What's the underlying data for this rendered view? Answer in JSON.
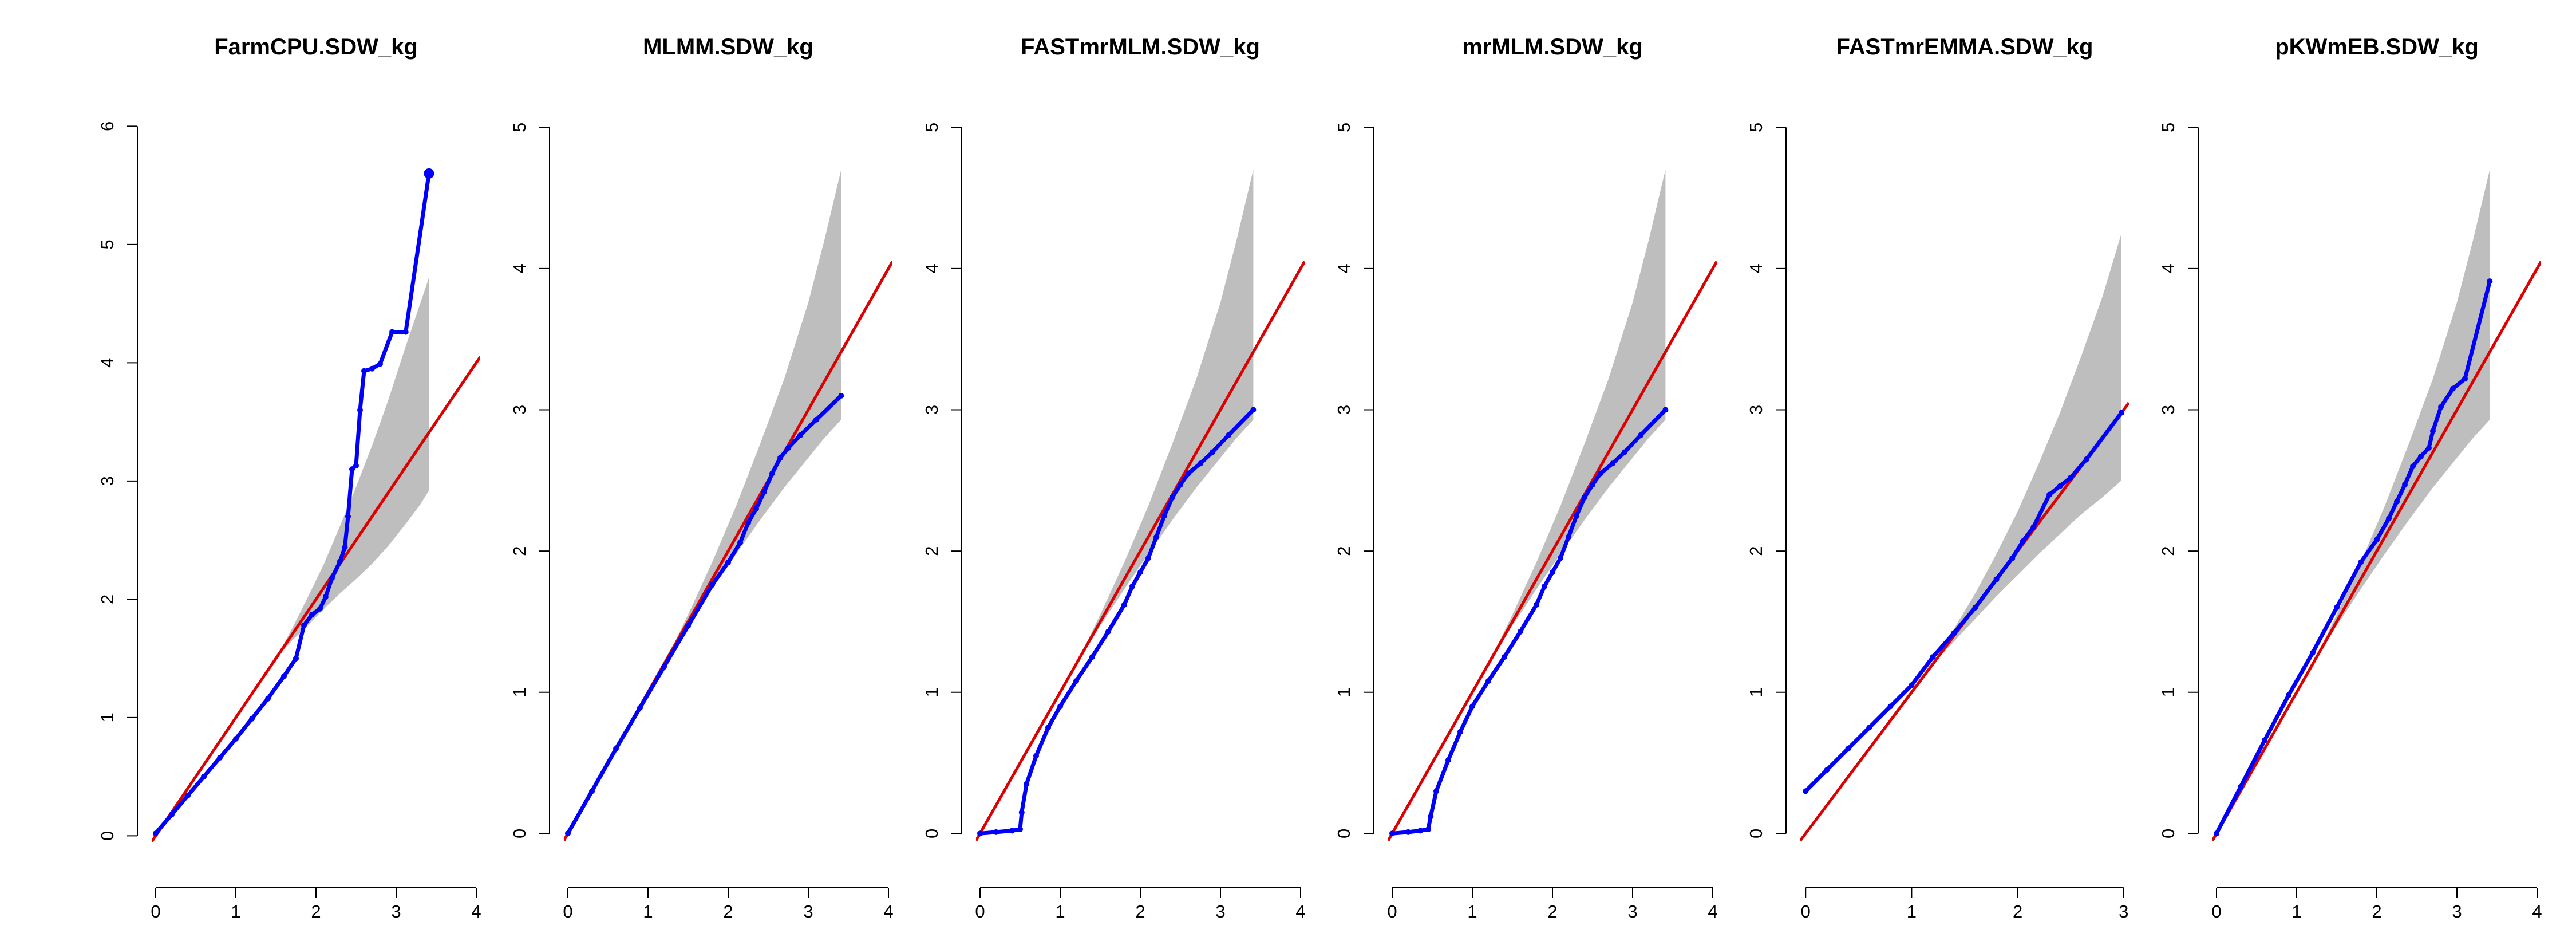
{
  "colors": {
    "points": "#0000ff",
    "line": "#dd0000",
    "band": "#bebebe",
    "axis": "#000000"
  },
  "chart_data": [
    {
      "type": "scatter",
      "title": "FarmCPU.SDW_kg",
      "xlabel": "",
      "ylabel": "",
      "xlim": [
        -0.05,
        4.05
      ],
      "ylim": [
        -0.1,
        6.05
      ],
      "xticks": [
        0,
        1,
        2,
        3,
        4
      ],
      "yticks": [
        0,
        1,
        2,
        3,
        4,
        5,
        6
      ],
      "reference_line": {
        "slope": 1,
        "intercept": 0
      },
      "band": {
        "x": [
          1.5,
          1.7,
          1.9,
          2.1,
          2.3,
          2.5,
          2.7,
          2.9,
          3.1,
          3.3,
          3.41
        ],
        "lower": [
          1.5,
          1.65,
          1.78,
          1.92,
          2.05,
          2.17,
          2.3,
          2.45,
          2.62,
          2.8,
          2.92
        ],
        "upper": [
          1.5,
          1.75,
          2.02,
          2.3,
          2.62,
          2.95,
          3.3,
          3.68,
          4.1,
          4.5,
          4.72
        ]
      },
      "points": [
        [
          0,
          0.02
        ],
        [
          0.2,
          0.18
        ],
        [
          0.4,
          0.34
        ],
        [
          0.6,
          0.5
        ],
        [
          0.8,
          0.66
        ],
        [
          1.0,
          0.82
        ],
        [
          1.2,
          0.99
        ],
        [
          1.4,
          1.16
        ],
        [
          1.6,
          1.35
        ],
        [
          1.75,
          1.5
        ],
        [
          1.85,
          1.78
        ],
        [
          1.95,
          1.87
        ],
        [
          2.05,
          1.92
        ],
        [
          2.12,
          2.02
        ],
        [
          2.2,
          2.18
        ],
        [
          2.3,
          2.32
        ],
        [
          2.36,
          2.44
        ],
        [
          2.4,
          2.7
        ],
        [
          2.45,
          3.1
        ],
        [
          2.5,
          3.13
        ],
        [
          2.55,
          3.6
        ],
        [
          2.6,
          3.93
        ],
        [
          2.7,
          3.95
        ],
        [
          2.8,
          3.99
        ],
        [
          2.95,
          4.26
        ],
        [
          3.12,
          4.26
        ],
        [
          3.41,
          5.6
        ]
      ]
    },
    {
      "type": "scatter",
      "title": "MLMM.SDW_kg",
      "xlabel": "",
      "ylabel": "",
      "xlim": [
        -0.05,
        4.05
      ],
      "ylim": [
        -0.1,
        5.05
      ],
      "xticks": [
        0,
        1,
        2,
        3,
        4
      ],
      "yticks": [
        0,
        1,
        2,
        3,
        4,
        5
      ],
      "reference_line": {
        "slope": 1,
        "intercept": 0
      },
      "band": {
        "x": [
          1.2,
          1.5,
          1.8,
          2.1,
          2.4,
          2.7,
          3.0,
          3.2,
          3.41
        ],
        "lower": [
          1.2,
          1.47,
          1.73,
          1.98,
          2.22,
          2.45,
          2.66,
          2.8,
          2.93
        ],
        "upper": [
          1.2,
          1.55,
          1.92,
          2.32,
          2.76,
          3.22,
          3.76,
          4.2,
          4.7
        ]
      },
      "points": [
        [
          0,
          0
        ],
        [
          0.3,
          0.3
        ],
        [
          0.6,
          0.6
        ],
        [
          0.9,
          0.89
        ],
        [
          1.2,
          1.18
        ],
        [
          1.5,
          1.47
        ],
        [
          1.8,
          1.76
        ],
        [
          2.0,
          1.92
        ],
        [
          2.15,
          2.06
        ],
        [
          2.25,
          2.2
        ],
        [
          2.35,
          2.3
        ],
        [
          2.45,
          2.42
        ],
        [
          2.55,
          2.55
        ],
        [
          2.65,
          2.66
        ],
        [
          2.75,
          2.73
        ],
        [
          2.9,
          2.82
        ],
        [
          3.1,
          2.93
        ],
        [
          3.41,
          3.1
        ]
      ]
    },
    {
      "type": "scatter",
      "title": "FASTmrMLM.SDW_kg",
      "xlabel": "",
      "ylabel": "",
      "xlim": [
        -0.05,
        4.05
      ],
      "ylim": [
        -0.1,
        5.05
      ],
      "xticks": [
        0,
        1,
        2,
        3,
        4
      ],
      "yticks": [
        0,
        1,
        2,
        3,
        4,
        5
      ],
      "reference_line": {
        "slope": 1,
        "intercept": 0
      },
      "band": {
        "x": [
          1.2,
          1.5,
          1.8,
          2.1,
          2.4,
          2.7,
          3.0,
          3.2,
          3.41
        ],
        "lower": [
          1.2,
          1.47,
          1.73,
          1.98,
          2.22,
          2.45,
          2.66,
          2.8,
          2.93
        ],
        "upper": [
          1.2,
          1.55,
          1.92,
          2.32,
          2.76,
          3.22,
          3.76,
          4.2,
          4.7
        ]
      },
      "points": [
        [
          0,
          0
        ],
        [
          0.2,
          0.01
        ],
        [
          0.4,
          0.02
        ],
        [
          0.5,
          0.03
        ],
        [
          0.52,
          0.15
        ],
        [
          0.58,
          0.35
        ],
        [
          0.7,
          0.55
        ],
        [
          0.85,
          0.75
        ],
        [
          1.0,
          0.9
        ],
        [
          1.2,
          1.08
        ],
        [
          1.4,
          1.25
        ],
        [
          1.6,
          1.43
        ],
        [
          1.8,
          1.62
        ],
        [
          1.9,
          1.75
        ],
        [
          2.0,
          1.85
        ],
        [
          2.1,
          1.95
        ],
        [
          2.2,
          2.1
        ],
        [
          2.3,
          2.25
        ],
        [
          2.4,
          2.38
        ],
        [
          2.5,
          2.47
        ],
        [
          2.6,
          2.55
        ],
        [
          2.75,
          2.62
        ],
        [
          2.9,
          2.7
        ],
        [
          3.1,
          2.82
        ],
        [
          3.41,
          3.0
        ]
      ]
    },
    {
      "type": "scatter",
      "title": "mrMLM.SDW_kg",
      "xlabel": "",
      "ylabel": "",
      "xlim": [
        -0.05,
        4.05
      ],
      "ylim": [
        -0.1,
        5.05
      ],
      "xticks": [
        0,
        1,
        2,
        3,
        4
      ],
      "yticks": [
        0,
        1,
        2,
        3,
        4,
        5
      ],
      "reference_line": {
        "slope": 1,
        "intercept": 0
      },
      "band": {
        "x": [
          1.2,
          1.5,
          1.8,
          2.1,
          2.4,
          2.7,
          3.0,
          3.2,
          3.41
        ],
        "lower": [
          1.2,
          1.47,
          1.73,
          1.98,
          2.22,
          2.45,
          2.66,
          2.8,
          2.93
        ],
        "upper": [
          1.2,
          1.55,
          1.92,
          2.32,
          2.76,
          3.22,
          3.76,
          4.2,
          4.7
        ]
      },
      "points": [
        [
          0,
          0
        ],
        [
          0.2,
          0.01
        ],
        [
          0.35,
          0.02
        ],
        [
          0.45,
          0.03
        ],
        [
          0.48,
          0.12
        ],
        [
          0.55,
          0.3
        ],
        [
          0.7,
          0.52
        ],
        [
          0.85,
          0.72
        ],
        [
          1.0,
          0.9
        ],
        [
          1.2,
          1.08
        ],
        [
          1.4,
          1.25
        ],
        [
          1.6,
          1.43
        ],
        [
          1.8,
          1.62
        ],
        [
          1.9,
          1.75
        ],
        [
          2.0,
          1.85
        ],
        [
          2.1,
          1.95
        ],
        [
          2.2,
          2.1
        ],
        [
          2.3,
          2.25
        ],
        [
          2.4,
          2.38
        ],
        [
          2.5,
          2.47
        ],
        [
          2.6,
          2.55
        ],
        [
          2.75,
          2.62
        ],
        [
          2.9,
          2.7
        ],
        [
          3.1,
          2.82
        ],
        [
          3.41,
          3.0
        ]
      ]
    },
    {
      "type": "scatter",
      "title": "FASTmrEMMA.SDW_kg",
      "xlabel": "",
      "ylabel": "",
      "xlim": [
        -0.05,
        3.05
      ],
      "ylim": [
        -0.1,
        5.05
      ],
      "xticks": [
        0,
        1,
        2,
        3
      ],
      "yticks": [
        0,
        1,
        2,
        3,
        4,
        5
      ],
      "reference_line": {
        "slope": 1,
        "intercept": 0
      },
      "band": {
        "x": [
          1.2,
          1.4,
          1.6,
          1.8,
          2.0,
          2.2,
          2.4,
          2.6,
          2.8,
          2.98
        ],
        "lower": [
          1.2,
          1.36,
          1.52,
          1.68,
          1.83,
          1.98,
          2.12,
          2.26,
          2.38,
          2.5
        ],
        "upper": [
          1.2,
          1.45,
          1.7,
          1.98,
          2.28,
          2.62,
          2.98,
          3.38,
          3.8,
          4.25
        ]
      },
      "points": [
        [
          0,
          0.3
        ],
        [
          0.2,
          0.45
        ],
        [
          0.4,
          0.6
        ],
        [
          0.6,
          0.75
        ],
        [
          0.8,
          0.9
        ],
        [
          1.0,
          1.05
        ],
        [
          1.2,
          1.25
        ],
        [
          1.4,
          1.42
        ],
        [
          1.6,
          1.6
        ],
        [
          1.8,
          1.8
        ],
        [
          1.95,
          1.95
        ],
        [
          2.05,
          2.07
        ],
        [
          2.15,
          2.17
        ],
        [
          2.3,
          2.4
        ],
        [
          2.4,
          2.46
        ],
        [
          2.5,
          2.52
        ],
        [
          2.65,
          2.65
        ],
        [
          2.98,
          2.98
        ]
      ]
    },
    {
      "type": "scatter",
      "title": "pKWmEB.SDW_kg",
      "xlabel": "",
      "ylabel": "",
      "xlim": [
        -0.05,
        4.05
      ],
      "ylim": [
        -0.1,
        5.05
      ],
      "xticks": [
        0,
        1,
        2,
        3,
        4
      ],
      "yticks": [
        0,
        1,
        2,
        3,
        4,
        5
      ],
      "reference_line": {
        "slope": 1,
        "intercept": 0
      },
      "band": {
        "x": [
          1.2,
          1.5,
          1.8,
          2.1,
          2.4,
          2.7,
          3.0,
          3.2,
          3.41
        ],
        "lower": [
          1.2,
          1.47,
          1.73,
          1.98,
          2.22,
          2.45,
          2.66,
          2.8,
          2.93
        ],
        "upper": [
          1.2,
          1.55,
          1.92,
          2.32,
          2.76,
          3.22,
          3.76,
          4.2,
          4.7
        ]
      },
      "points": [
        [
          0,
          0
        ],
        [
          0.3,
          0.33
        ],
        [
          0.6,
          0.66
        ],
        [
          0.9,
          0.98
        ],
        [
          1.2,
          1.28
        ],
        [
          1.5,
          1.6
        ],
        [
          1.8,
          1.92
        ],
        [
          2.0,
          2.08
        ],
        [
          2.15,
          2.23
        ],
        [
          2.25,
          2.35
        ],
        [
          2.35,
          2.47
        ],
        [
          2.45,
          2.6
        ],
        [
          2.55,
          2.67
        ],
        [
          2.65,
          2.73
        ],
        [
          2.7,
          2.85
        ],
        [
          2.8,
          3.02
        ],
        [
          2.95,
          3.15
        ],
        [
          3.1,
          3.22
        ],
        [
          3.41,
          3.91
        ]
      ]
    }
  ]
}
